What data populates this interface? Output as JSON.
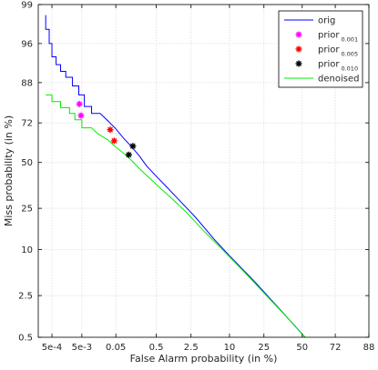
{
  "chart_data": {
    "type": "line",
    "title": "",
    "xlabel": "False Alarm probability (in %)",
    "ylabel": "Miss probability (in %)",
    "x_scale": "probit",
    "y_scale": "probit",
    "xlim": [
      0.00016,
      88
    ],
    "ylim": [
      0.5,
      99
    ],
    "x_ticks": [
      {
        "value": 0.0005,
        "label": "5e-4"
      },
      {
        "value": 0.005,
        "label": "5e-3"
      },
      {
        "value": 0.05,
        "label": "0.05"
      },
      {
        "value": 0.5,
        "label": "0.5"
      },
      {
        "value": 2.5,
        "label": "2.5"
      },
      {
        "value": 10,
        "label": "10"
      },
      {
        "value": 25,
        "label": "25"
      },
      {
        "value": 50,
        "label": "50"
      },
      {
        "value": 72,
        "label": "72"
      },
      {
        "value": 88,
        "label": "88"
      }
    ],
    "y_ticks": [
      {
        "value": 0.5,
        "label": "0.5"
      },
      {
        "value": 2.5,
        "label": "2.5"
      },
      {
        "value": 10,
        "label": "10"
      },
      {
        "value": 25,
        "label": "25"
      },
      {
        "value": 50,
        "label": "50"
      },
      {
        "value": 72,
        "label": "72"
      },
      {
        "value": 88,
        "label": "88"
      },
      {
        "value": 96,
        "label": "96"
      },
      {
        "value": 99,
        "label": "99"
      }
    ],
    "grid": true,
    "legend_position": "top-right",
    "series": [
      {
        "name": "orig",
        "kind": "line",
        "color": "#0000ff",
        "points": [
          [
            0.0003,
            98.5
          ],
          [
            0.0003,
            97.5
          ],
          [
            0.0004,
            97.5
          ],
          [
            0.0004,
            96
          ],
          [
            0.0005,
            96
          ],
          [
            0.0005,
            94
          ],
          [
            0.0007,
            94
          ],
          [
            0.0007,
            92.5
          ],
          [
            0.001,
            92.5
          ],
          [
            0.001,
            91
          ],
          [
            0.0015,
            91
          ],
          [
            0.0015,
            89.5
          ],
          [
            0.0025,
            89.5
          ],
          [
            0.0025,
            87
          ],
          [
            0.004,
            87
          ],
          [
            0.004,
            84
          ],
          [
            0.006,
            84
          ],
          [
            0.006,
            79.5
          ],
          [
            0.01,
            79.5
          ],
          [
            0.01,
            76.5
          ],
          [
            0.018,
            76.5
          ],
          [
            0.03,
            73
          ],
          [
            0.05,
            69
          ],
          [
            0.08,
            64
          ],
          [
            0.12,
            60
          ],
          [
            0.2,
            54
          ],
          [
            0.3,
            48
          ],
          [
            0.5,
            42
          ],
          [
            0.8,
            36.5
          ],
          [
            1.5,
            29
          ],
          [
            3,
            21
          ],
          [
            6,
            13
          ],
          [
            10,
            8.5
          ],
          [
            20,
            4
          ],
          [
            35,
            1.5
          ],
          [
            52,
            0.5
          ]
        ]
      },
      {
        "name": "denoised",
        "kind": "line",
        "color": "#00ee00",
        "points": [
          [
            0.0003,
            84
          ],
          [
            0.0005,
            84
          ],
          [
            0.0005,
            81.5
          ],
          [
            0.001,
            81.5
          ],
          [
            0.001,
            79
          ],
          [
            0.002,
            79
          ],
          [
            0.002,
            76.5
          ],
          [
            0.003,
            76.5
          ],
          [
            0.003,
            73.5
          ],
          [
            0.005,
            73.5
          ],
          [
            0.005,
            69.5
          ],
          [
            0.01,
            69.5
          ],
          [
            0.015,
            66.5
          ],
          [
            0.03,
            63
          ],
          [
            0.05,
            59
          ],
          [
            0.08,
            55.5
          ],
          [
            0.12,
            52
          ],
          [
            0.2,
            46.5
          ],
          [
            0.35,
            41
          ],
          [
            0.6,
            35.5
          ],
          [
            1,
            30.5
          ],
          [
            2,
            23.5
          ],
          [
            4,
            16
          ],
          [
            8,
            10
          ],
          [
            15,
            5.5
          ],
          [
            30,
            2
          ],
          [
            45,
            0.8
          ],
          [
            52,
            0.5
          ]
        ]
      },
      {
        "name": "prior 0.001",
        "label_main": "prior",
        "label_sub": "0.001",
        "kind": "marker",
        "color": "#ff00ff",
        "points": [
          [
            0.0042,
            80.5
          ],
          [
            0.0047,
            75.5
          ]
        ]
      },
      {
        "name": "prior 0.005",
        "label_main": "prior",
        "label_sub": "0.005",
        "kind": "marker",
        "color": "#ff0000",
        "points": [
          [
            0.035,
            68.5
          ],
          [
            0.045,
            62.5
          ]
        ]
      },
      {
        "name": "prior 0.010",
        "label_main": "prior",
        "label_sub": "0.010",
        "kind": "marker",
        "color": "#000000",
        "points": [
          [
            0.14,
            59.5
          ],
          [
            0.11,
            54.5
          ]
        ]
      }
    ]
  }
}
